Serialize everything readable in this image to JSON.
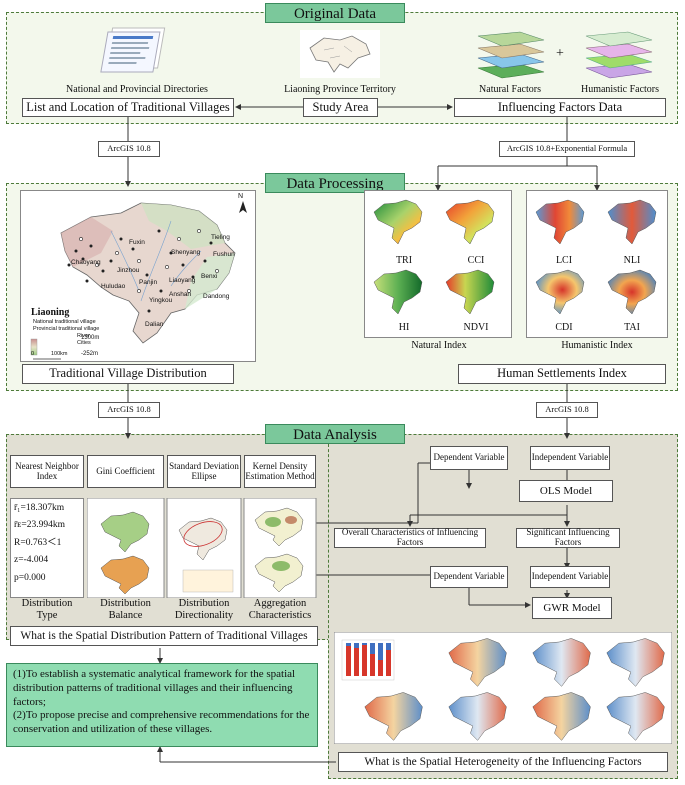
{
  "sections": {
    "original": "Original Data",
    "processing": "Data Processing",
    "analysis": "Data Analysis"
  },
  "original": {
    "thumbs": [
      "National and Provincial Directories",
      "Liaoning Province Territory",
      "Natural Factors",
      "Humanistic Factors"
    ],
    "plus": "+",
    "boxes": [
      "List and Location of Traditional Villages",
      "Study Area",
      "Influencing Factors Data"
    ]
  },
  "connectors": {
    "arcgis": "ArcGIS 10.8",
    "arcgis_exp": "ArcGIS 10.8+Exponential Formula"
  },
  "processing": {
    "map": {
      "province": "Liaoning",
      "legend": [
        "National traditional village",
        "Provincial traditional village",
        "River",
        "Cities"
      ],
      "elev_high": "1300m",
      "elev_low": "-252m",
      "scale_zero": "0",
      "scale": "100km",
      "north": "N",
      "cities": [
        "Tieling",
        "Fuxin",
        "Shenyang",
        "Fushun",
        "Chaoyang",
        "Jinzhou",
        "Panjin",
        "Benxi",
        "Liaoyang",
        "Huludao",
        "Anshan",
        "Yingkou",
        "Dandong",
        "Dalian"
      ]
    },
    "natural_index": [
      "TRI",
      "CCI",
      "HI",
      "NDVI"
    ],
    "natural_label": "Natural Index",
    "humanistic_index": [
      "LCI",
      "NLI",
      "CDI",
      "TAI"
    ],
    "humanistic_label": "Humanistic Index",
    "distribution_box": "Traditional Village Distribution",
    "settlement_box": "Human Settlements Index"
  },
  "analysis": {
    "methods": [
      "Nearest Neighbor Index",
      "Gini Coefficient",
      "Standard Deviation Ellipse",
      "Kernel Density Estimation Method"
    ],
    "stats": {
      "r1_label": "r̄₁=18.307km",
      "r2_label": "r̄ᴇ=23.994km",
      "r": "R=0.763＜1",
      "z": "z=-4.004",
      "p": "p=0.000"
    },
    "results": [
      "Distribution Type",
      "Distribution Balance",
      "Distribution Directionality",
      "Aggregation Characteristics"
    ],
    "question1": "What is the Spatial Distribution Pattern of Traditional Villages",
    "dependent1": "Dependent Variable",
    "independent1": "Independent Variable",
    "ols": "OLS Model",
    "overall": "Overall Characteristics of Influencing Factors",
    "significant": "Significant Influencing Factors",
    "dependent2": "Dependent Variable",
    "independent2": "Independent Variable",
    "gwr": "GWR Model",
    "question2": "What is the Spatial Heterogeneity of the Influencing Factors",
    "goals": [
      "(1)To establish a systematic analytical framework for the spatial distribution patterns of traditional villages and their influencing factors;",
      "(2)To propose precise and comprehensive recommendations for the conservation and utilization of these villages."
    ]
  },
  "colors": {
    "section_bg": "#f3f8ec",
    "analysis_bg": "#e1dfd3",
    "title_green": "#7bc89b",
    "goal_green": "#8fdcb1"
  }
}
